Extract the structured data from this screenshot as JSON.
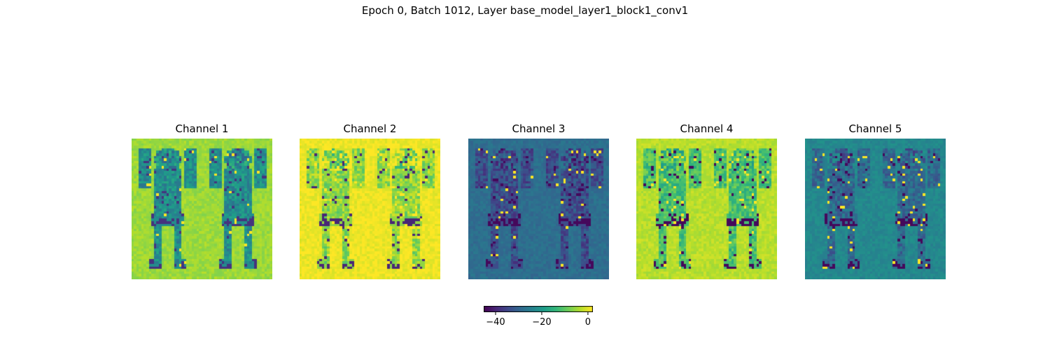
{
  "figure": {
    "suptitle": "Epoch 0, Batch 1012, Layer base_model_layer1_block1_conv1"
  },
  "chart_data": {
    "type": "heatmap",
    "title": "Epoch 0, Batch 1012, Layer base_model_layer1_block1_conv1",
    "colormap": "viridis",
    "panels": [
      {
        "title": "Channel 1",
        "base_value": -5,
        "feature_value": -22,
        "accent_value": -38,
        "dominant_tone": "green"
      },
      {
        "title": "Channel 2",
        "base_value": 1,
        "feature_value": -6,
        "accent_value": -40,
        "dominant_tone": "yellow"
      },
      {
        "title": "Channel 3",
        "base_value": -28,
        "feature_value": -34,
        "accent_value": -44,
        "dominant_tone": "teal-blue"
      },
      {
        "title": "Channel 4",
        "base_value": -3,
        "feature_value": -12,
        "accent_value": -44,
        "dominant_tone": "yellow-green"
      },
      {
        "title": "Channel 5",
        "base_value": -23,
        "feature_value": -29,
        "accent_value": -44,
        "dominant_tone": "teal"
      }
    ],
    "colorbar": {
      "range": [
        -45,
        2
      ],
      "ticks": [
        -40,
        -20,
        0
      ],
      "tick_labels": [
        "−40",
        "−20",
        "0"
      ],
      "orientation": "horizontal",
      "placement": "bottom-center"
    }
  }
}
